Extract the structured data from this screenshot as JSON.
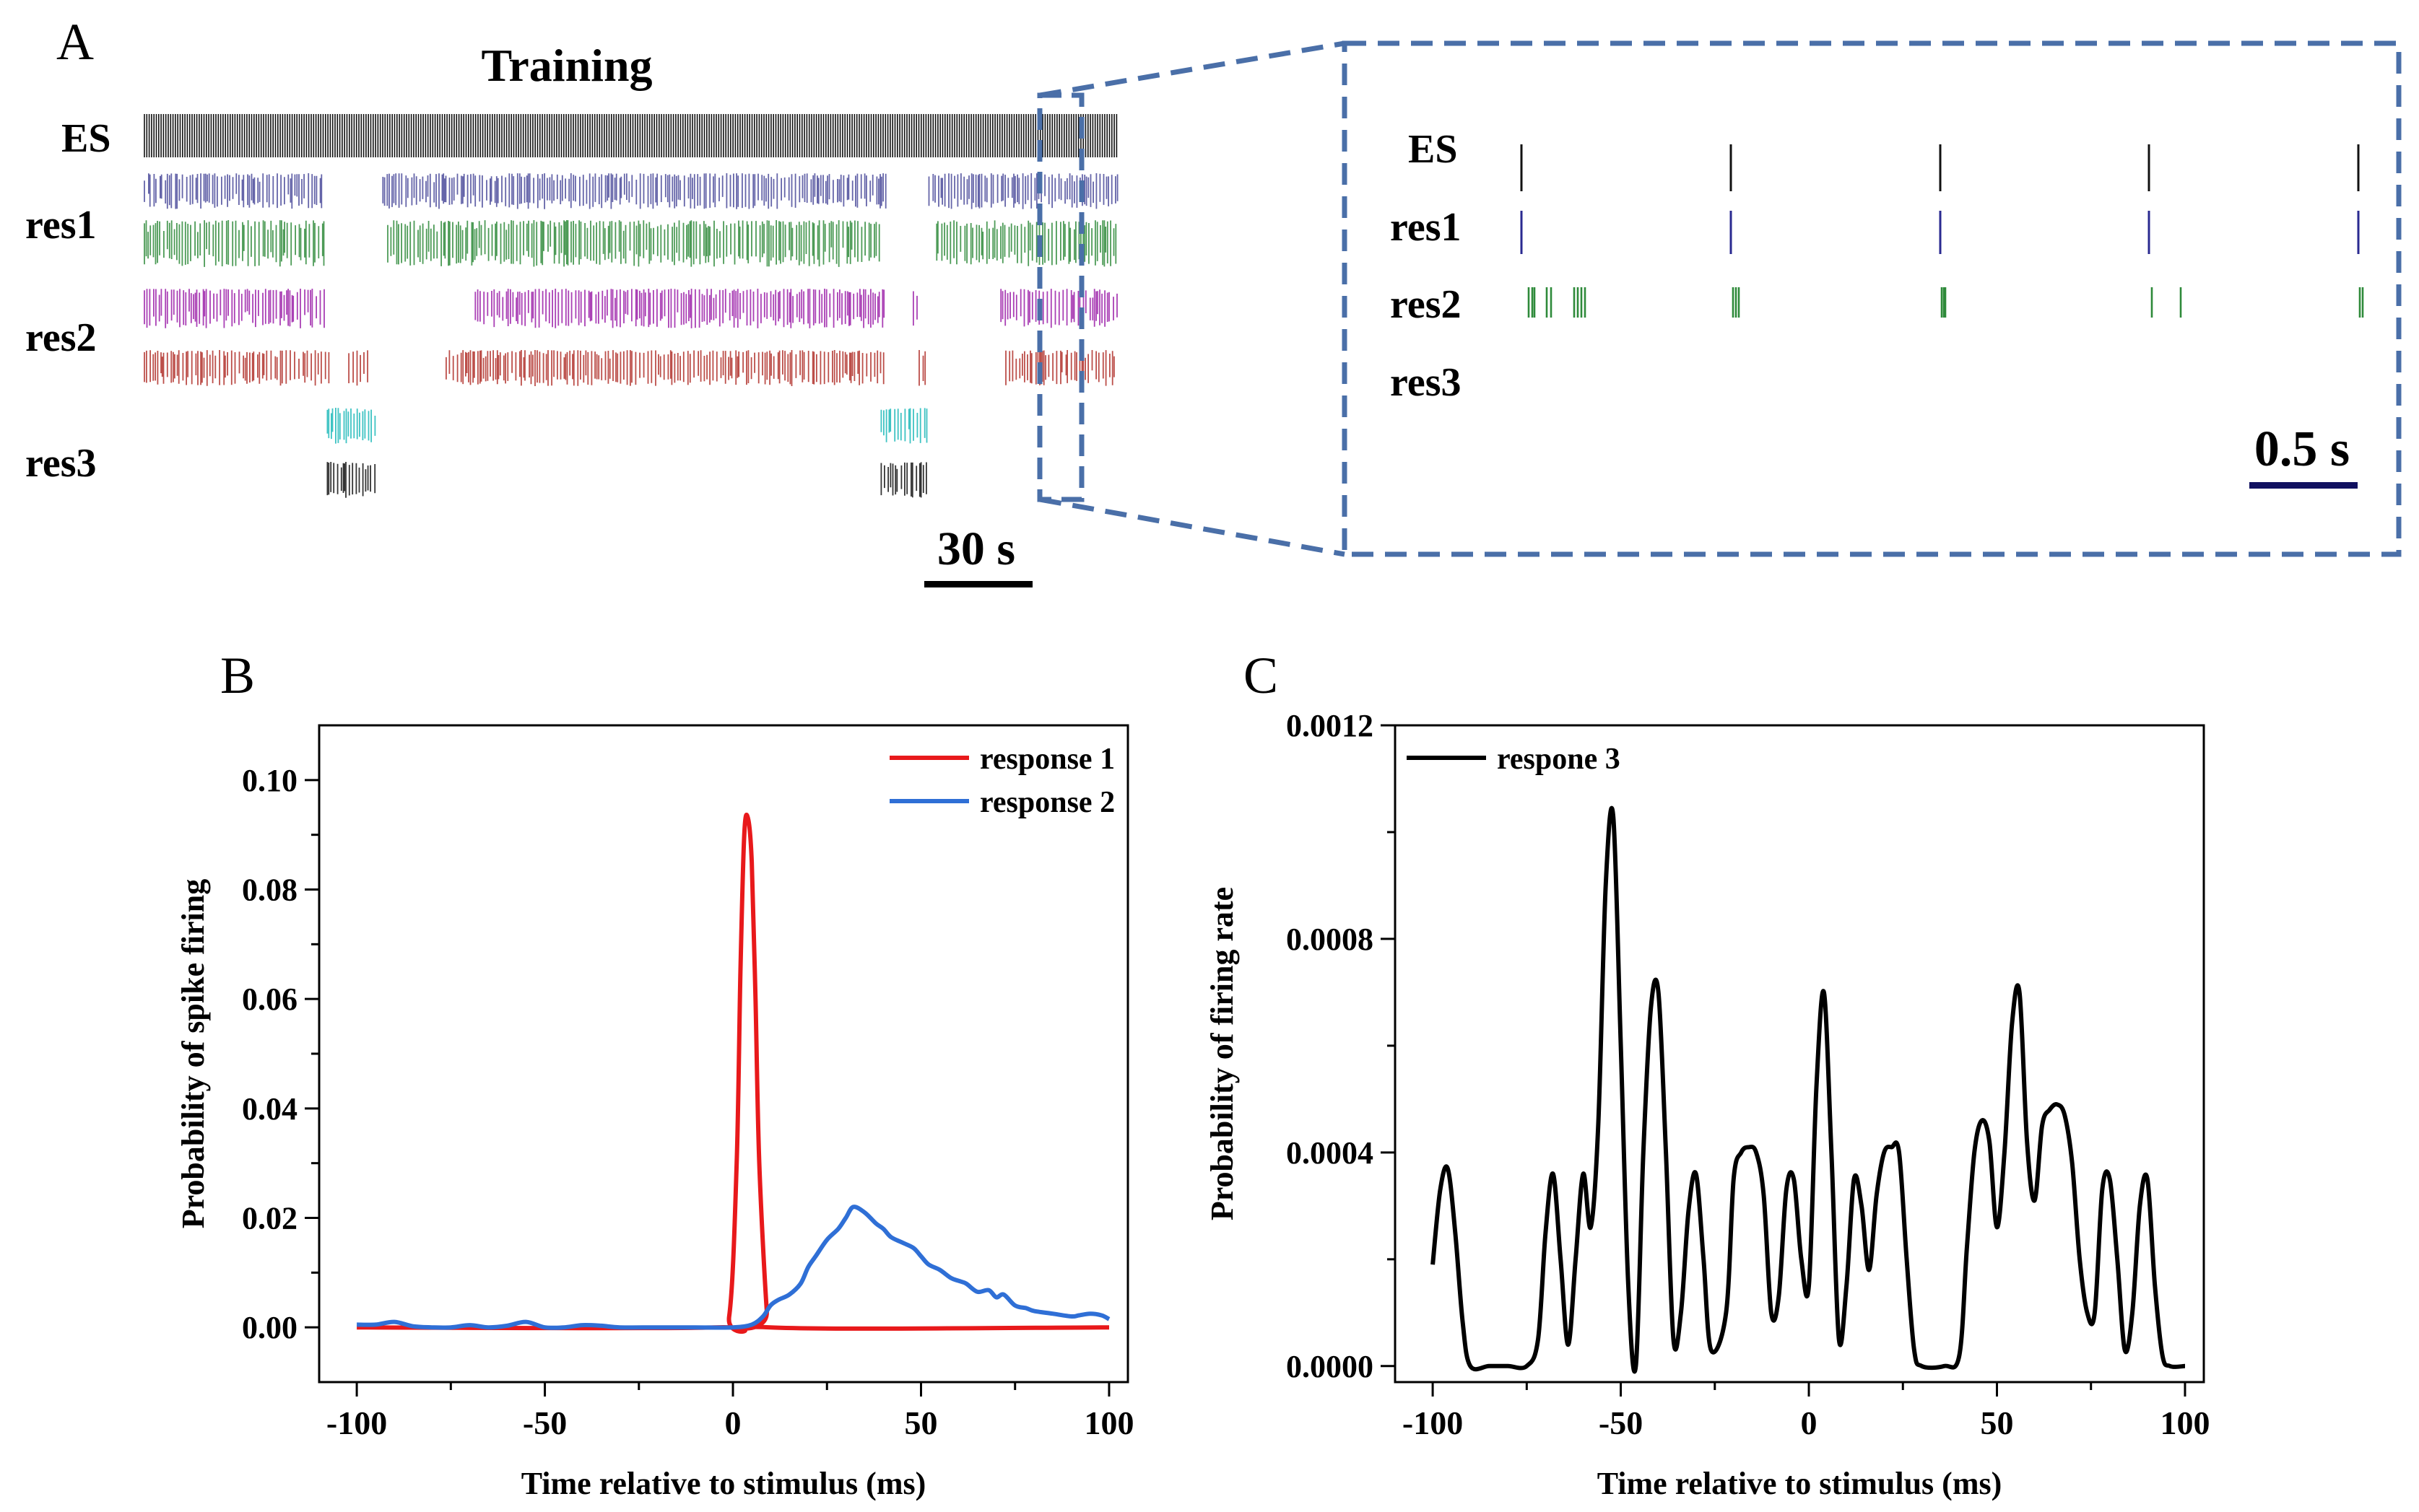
{
  "panel_a": {
    "letter": "A",
    "title": "Training",
    "row_labels": [
      "ES",
      "res1",
      "res2",
      "res3"
    ],
    "scale_bar_label": "30 s",
    "rasters": [
      {
        "name": "es",
        "color": "#111111",
        "segments": [
          [
            0,
            1
          ]
        ]
      },
      {
        "name": "res1-unit-a",
        "color": "#4a4a9a",
        "segments": [
          [
            0,
            0.185
          ],
          [
            0.245,
            0.762
          ],
          [
            0.806,
            1
          ]
        ]
      },
      {
        "name": "res1-unit-b",
        "color": "#2e8a3a",
        "segments": [
          [
            0,
            0.187
          ],
          [
            0.25,
            0.757
          ],
          [
            0.814,
            1
          ]
        ]
      },
      {
        "name": "res2-unit-a",
        "color": "#9b1fa8",
        "segments": [
          [
            0,
            0.188
          ],
          [
            0.34,
            0.76
          ],
          [
            0.79,
            0.795
          ],
          [
            0.88,
            1
          ]
        ]
      },
      {
        "name": "res2-unit-b",
        "color": "#b0302a",
        "segments": [
          [
            0,
            0.19
          ],
          [
            0.21,
            0.232
          ],
          [
            0.31,
            0.762
          ],
          [
            0.796,
            0.803
          ],
          [
            0.885,
            1
          ]
        ]
      },
      {
        "name": "res3-unit-a",
        "color": "#1cb8b8",
        "segments": [
          [
            0.188,
            0.238
          ],
          [
            0.757,
            0.805
          ]
        ]
      },
      {
        "name": "res3-unit-b",
        "color": "#111111",
        "segments": [
          [
            0.188,
            0.238
          ],
          [
            0.757,
            0.805
          ]
        ]
      }
    ]
  },
  "panel_a_zoom": {
    "row_labels": [
      "ES",
      "res1",
      "res2",
      "res3"
    ],
    "scale_bar_label": "0.5 s",
    "colors": {
      "es": "#111111",
      "res1": "#2a2a90",
      "res2": "#2e8a3a"
    }
  },
  "chart_data": [
    {
      "panel": "B",
      "type": "line",
      "title": "",
      "xlabel": "Time relative to stimulus (ms)",
      "ylabel": "Probability of spike firing",
      "xlim": [
        -110,
        105
      ],
      "ylim": [
        -0.01,
        0.11
      ],
      "xticks": [
        -100,
        -50,
        0,
        50,
        100
      ],
      "yticks": [
        0.0,
        0.02,
        0.04,
        0.06,
        0.08,
        0.1
      ],
      "ytick_labels": [
        "0.00",
        "0.02",
        "0.04",
        "0.06",
        "0.08",
        "0.10"
      ],
      "legend_position": "top-right",
      "series": [
        {
          "name": "response 1",
          "color": "#e8191b",
          "x": [
            -100,
            -5,
            -1,
            1,
            2,
            3,
            4,
            5,
            6,
            7,
            9,
            10,
            100
          ],
          "y": [
            0,
            0,
            0.002,
            0.03,
            0.065,
            0.09,
            0.093,
            0.085,
            0.06,
            0.03,
            0.003,
            0,
            0
          ]
        },
        {
          "name": "response 2",
          "color": "#2f6fd6",
          "x": [
            -100,
            -95,
            -90,
            -85,
            -80,
            -75,
            -70,
            -65,
            -60,
            -55,
            -50,
            -45,
            -40,
            -35,
            -30,
            -20,
            -10,
            0,
            5,
            8,
            10,
            12,
            15,
            18,
            20,
            22,
            25,
            28,
            30,
            32,
            35,
            38,
            40,
            42,
            45,
            48,
            50,
            52,
            55,
            58,
            60,
            62,
            65,
            68,
            70,
            72,
            75,
            78,
            80,
            85,
            90,
            92,
            95,
            98,
            100
          ],
          "y": [
            0.0005,
            0.0005,
            0.001,
            0.0002,
            0,
            0,
            0.0004,
            0,
            0.0003,
            0.001,
            0,
            0,
            0.0004,
            0.0003,
            0,
            0,
            0,
            0,
            0.0005,
            0.002,
            0.004,
            0.005,
            0.006,
            0.008,
            0.011,
            0.013,
            0.016,
            0.018,
            0.02,
            0.022,
            0.021,
            0.019,
            0.018,
            0.0165,
            0.0155,
            0.0145,
            0.013,
            0.0115,
            0.0105,
            0.009,
            0.0085,
            0.008,
            0.0065,
            0.0068,
            0.0055,
            0.006,
            0.004,
            0.0035,
            0.003,
            0.0025,
            0.002,
            0.0022,
            0.0025,
            0.0022,
            0.0015
          ]
        }
      ]
    },
    {
      "panel": "C",
      "type": "line",
      "title": "",
      "xlabel": "Time relative to stimulus (ms)",
      "ylabel": "Probability of firing rate",
      "xlim": [
        -110,
        105
      ],
      "ylim": [
        -3e-05,
        0.0012
      ],
      "xticks": [
        -100,
        -50,
        0,
        50,
        100
      ],
      "yticks": [
        0.0,
        0.0004,
        0.0008,
        0.0012
      ],
      "ytick_labels": [
        "0.0000",
        "0.0004",
        "0.0008",
        "0.0012"
      ],
      "legend_position": "top-left",
      "series": [
        {
          "name": "respone 3",
          "color": "#000000",
          "x": [
            -100,
            -98,
            -96,
            -94,
            -92,
            -90,
            -85,
            -80,
            -75,
            -72,
            -70,
            -68,
            -66,
            -64,
            -62,
            -60,
            -58,
            -56,
            -54,
            -52,
            -50,
            -48,
            -46,
            -44,
            -42,
            -40,
            -38,
            -36,
            -34,
            -32,
            -30,
            -28,
            -26,
            -22,
            -20,
            -18,
            -16,
            -14,
            -12,
            -10,
            -8,
            -6,
            -4,
            -2,
            0,
            2,
            4,
            6,
            8,
            10,
            12,
            14,
            16,
            18,
            20,
            22,
            24,
            26,
            28,
            30,
            36,
            40,
            42,
            44,
            46,
            48,
            50,
            52,
            54,
            56,
            58,
            60,
            62,
            64,
            66,
            68,
            70,
            72,
            74,
            76,
            78,
            80,
            82,
            84,
            86,
            88,
            90,
            92,
            94,
            96,
            100
          ],
          "y": [
            0.00019,
            0.00033,
            0.00037,
            0.00025,
            8e-05,
            0,
            0,
            0,
            0,
            5e-05,
            0.00025,
            0.00036,
            0.0002,
            4e-05,
            0.0002,
            0.00036,
            0.00026,
            0.00045,
            0.0009,
            0.00103,
            0.0006,
            0.00015,
            0,
            0.0004,
            0.00067,
            0.0007,
            0.0004,
            5e-05,
            0.0001,
            0.00029,
            0.00036,
            0.0002,
            3e-05,
            0.0001,
            0.00035,
            0.0004,
            0.00041,
            0.0004,
            0.00032,
            0.0001,
            0.00013,
            0.00033,
            0.00035,
            0.0002,
            0.00015,
            0.00052,
            0.0007,
            0.0004,
            5e-05,
            0.00015,
            0.00035,
            0.0003,
            0.00018,
            0.00032,
            0.0004,
            0.00041,
            0.0004,
            0.0002,
            3e-05,
            0,
            0,
            2e-05,
            0.00022,
            0.0004,
            0.00046,
            0.00042,
            0.00026,
            0.0004,
            0.00064,
            0.0007,
            0.00042,
            0.00031,
            0.00045,
            0.00048,
            0.00049,
            0.00047,
            0.00038,
            0.0002,
            0.0001,
            0.0001,
            0.00033,
            0.00035,
            0.0002,
            3e-05,
            0.0001,
            0.0003,
            0.00035,
            0.00015,
            2e-05,
            0,
            0
          ]
        }
      ]
    }
  ]
}
